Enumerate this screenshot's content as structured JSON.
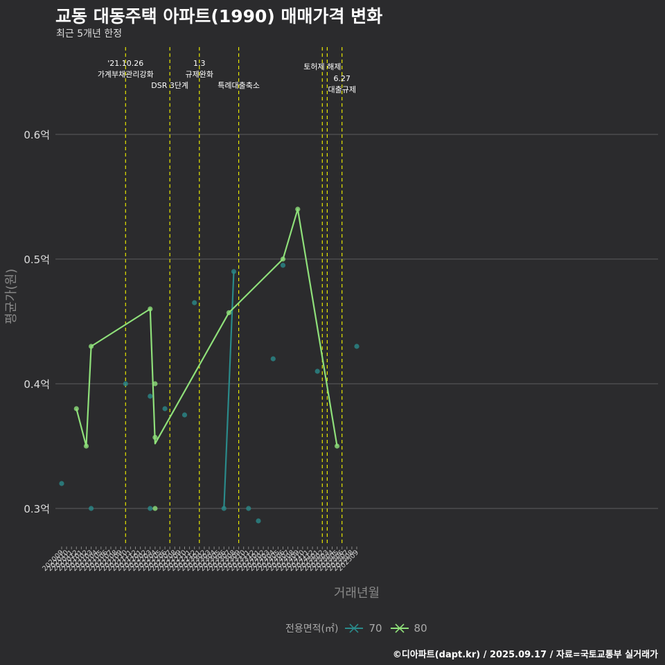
{
  "header": {
    "title": "교동 대동주택 아파트(1990) 매매가격 변화",
    "subtitle": "최근 5개년 한정"
  },
  "caption": "©디아파트(dapt.kr) / 2025.09.17 / 자료=국토교통부 실거래가",
  "legend": {
    "title": "전용면적(㎡)",
    "items": [
      {
        "label": "70",
        "color": "#2a8a8a"
      },
      {
        "label": "80",
        "color": "#8fe07a"
      }
    ]
  },
  "colors": {
    "background": "#2b2b2d",
    "grid": "#5e5e5e",
    "event_line": "#e6e600",
    "series_70": "#2a8a8a",
    "series_80": "#8fe07a"
  },
  "chart_data": {
    "type": "line",
    "xlabel": "거래년월",
    "ylabel": "평균가(원)",
    "ylim": [
      0.27,
      0.67
    ],
    "y_ticks": [
      {
        "value": 0.3,
        "label": "0.3억"
      },
      {
        "value": 0.4,
        "label": "0.4억"
      },
      {
        "value": 0.5,
        "label": "0.5억"
      },
      {
        "value": 0.6,
        "label": "0.6억"
      }
    ],
    "x_range": [
      "202009",
      "202509"
    ],
    "events": [
      {
        "x": "202110",
        "lines": [
          "'21.10.26",
          "가계부채관리강화"
        ],
        "level": 0
      },
      {
        "x": "202207",
        "lines": [
          "DSR 3단계"
        ],
        "level": 2
      },
      {
        "x": "202301",
        "lines": [
          "1.3",
          "규제완화"
        ],
        "level": 0
      },
      {
        "x": "202309",
        "lines": [
          "특례대출축소"
        ],
        "level": 2
      },
      {
        "x": "202502",
        "lines": [
          "토허제 해제"
        ],
        "level": 1
      },
      {
        "x": "202503",
        "lines": [],
        "level": 1
      },
      {
        "x": "202506",
        "lines": [
          "6.27",
          "대출규제"
        ],
        "level": 1
      }
    ],
    "series": [
      {
        "name": "70",
        "line": [
          {
            "x": "202306",
            "y": 0.3
          },
          {
            "x": "202308",
            "y": 0.49
          }
        ],
        "points": [
          {
            "x": "202009",
            "y": 0.32
          },
          {
            "x": "202103",
            "y": 0.3
          },
          {
            "x": "202110",
            "y": 0.4
          },
          {
            "x": "202203",
            "y": 0.39
          },
          {
            "x": "202203",
            "y": 0.3
          },
          {
            "x": "202206",
            "y": 0.38
          },
          {
            "x": "202210",
            "y": 0.375
          },
          {
            "x": "202212",
            "y": 0.465
          },
          {
            "x": "202306",
            "y": 0.3
          },
          {
            "x": "202308",
            "y": 0.49
          },
          {
            "x": "202311",
            "y": 0.3
          },
          {
            "x": "202401",
            "y": 0.29
          },
          {
            "x": "202404",
            "y": 0.42
          },
          {
            "x": "202406",
            "y": 0.495
          },
          {
            "x": "202501",
            "y": 0.41
          },
          {
            "x": "202509",
            "y": 0.43
          }
        ]
      },
      {
        "name": "80",
        "line": [
          {
            "x": "202012",
            "y": 0.38
          },
          {
            "x": "202102",
            "y": 0.35
          },
          {
            "x": "202103",
            "y": 0.43
          },
          {
            "x": "202203",
            "y": 0.46
          },
          {
            "x": "202204",
            "y": 0.352
          },
          {
            "x": "202307",
            "y": 0.457
          },
          {
            "x": "202406",
            "y": 0.5
          },
          {
            "x": "202409",
            "y": 0.54
          },
          {
            "x": "202505",
            "y": 0.35
          }
        ],
        "points": [
          {
            "x": "202012",
            "y": 0.38
          },
          {
            "x": "202102",
            "y": 0.35
          },
          {
            "x": "202103",
            "y": 0.43
          },
          {
            "x": "202203",
            "y": 0.46
          },
          {
            "x": "202204",
            "y": 0.4
          },
          {
            "x": "202204",
            "y": 0.357
          },
          {
            "x": "202204",
            "y": 0.3
          },
          {
            "x": "202307",
            "y": 0.457
          },
          {
            "x": "202406",
            "y": 0.5
          },
          {
            "x": "202409",
            "y": 0.54
          },
          {
            "x": "202505",
            "y": 0.35
          }
        ]
      }
    ]
  }
}
